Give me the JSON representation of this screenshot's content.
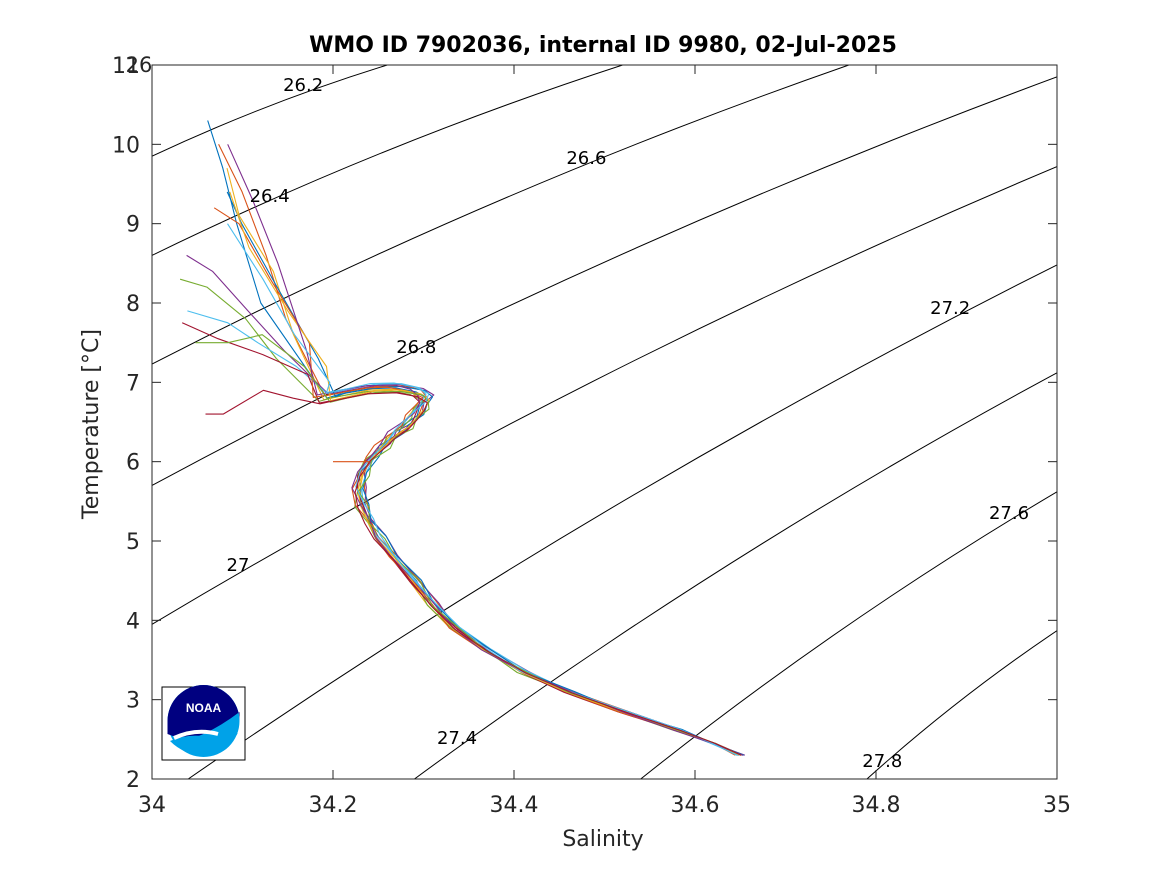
{
  "chart_data": {
    "type": "line",
    "title": "WMO ID 7902036, internal ID 9980, 02-Jul-2025",
    "xlabel": "Salinity",
    "ylabel": "Temperature [°C]",
    "xlim": [
      34,
      35
    ],
    "ylim": [
      2,
      11
    ],
    "x_ticks": [
      "34",
      "34.2",
      "34.4",
      "34.6",
      "34.8",
      "35"
    ],
    "y_ticks": [
      "2",
      "3",
      "4",
      "5",
      "6",
      "7",
      "8",
      "9",
      "10",
      "11"
    ],
    "top_overlap_label": "26",
    "grid": false,
    "legend": "none",
    "isopycnals": {
      "description_units": "sigma-theta (kg/m^3 - 1000)",
      "levels": [
        "26.2",
        "26.4",
        "26.6",
        "26.8",
        "27",
        "27.2",
        "27.4",
        "27.6",
        "27.8"
      ],
      "lines": [
        {
          "x": [
            34.0,
            34.26
          ],
          "y": [
            9.85,
            11.0
          ]
        },
        {
          "x": [
            34.0,
            34.52
          ],
          "y": [
            8.6,
            11.0
          ]
        },
        {
          "x": [
            34.0,
            34.77
          ],
          "y": [
            7.23,
            11.0
          ]
        },
        {
          "x": [
            34.0,
            35.0
          ],
          "y": [
            5.7,
            10.85
          ]
        },
        {
          "x": [
            34.0,
            35.0
          ],
          "y": [
            3.95,
            9.72
          ]
        },
        {
          "x": [
            34.04,
            35.0
          ],
          "y": [
            2.0,
            8.48
          ]
        },
        {
          "x": [
            34.29,
            35.0
          ],
          "y": [
            2.0,
            7.12
          ]
        },
        {
          "x": [
            34.54,
            35.0
          ],
          "y": [
            2.0,
            5.62
          ]
        },
        {
          "x": [
            34.79,
            35.0
          ],
          "y": [
            2.0,
            3.87
          ]
        }
      ],
      "label_positions": [
        {
          "text": "26.2",
          "x": 34.167,
          "y": 10.67
        },
        {
          "text": "26.4",
          "x": 34.13,
          "y": 9.27
        },
        {
          "text": "26.6",
          "x": 34.48,
          "y": 9.75
        },
        {
          "text": "26.8",
          "x": 34.292,
          "y": 7.37
        },
        {
          "text": "27",
          "x": 34.095,
          "y": 4.62
        },
        {
          "text": "27.2",
          "x": 34.882,
          "y": 7.86
        },
        {
          "text": "27.4",
          "x": 34.337,
          "y": 2.44
        },
        {
          "text": "27.6",
          "x": 34.947,
          "y": 5.28
        },
        {
          "text": "27.8",
          "x": 34.807,
          "y": 2.15
        }
      ]
    },
    "profile_colors": [
      "#0072BD",
      "#D95319",
      "#EDB120",
      "#7E2F8E",
      "#77AC30",
      "#4DBEEE",
      "#A2142F"
    ],
    "profile_base": {
      "x": [
        34.65,
        34.62,
        34.58,
        34.52,
        34.46,
        34.41,
        34.37,
        34.335,
        34.31,
        34.29,
        34.27,
        34.25,
        34.24,
        34.232,
        34.228,
        34.232,
        34.242,
        34.255,
        34.268,
        34.28,
        34.29,
        34.298,
        34.302,
        34.292,
        34.27,
        34.24,
        34.21,
        34.19
      ],
      "y": [
        2.3,
        2.45,
        2.62,
        2.85,
        3.1,
        3.35,
        3.62,
        3.9,
        4.2,
        4.5,
        4.8,
        5.05,
        5.25,
        5.45,
        5.65,
        5.85,
        6.05,
        6.2,
        6.35,
        6.45,
        6.58,
        6.7,
        6.8,
        6.88,
        6.93,
        6.92,
        6.85,
        6.8
      ]
    },
    "profile_tops": [
      {
        "top_x": [
          34.12,
          34.09,
          34.075,
          34.062
        ],
        "top_y": [
          8.0,
          9.0,
          9.7,
          10.3
        ]
      },
      {
        "top_x": [
          34.15,
          34.13,
          34.1,
          34.07
        ],
        "top_y": [
          7.8,
          8.6,
          9.4,
          10.0
        ]
      },
      {
        "top_x": [
          34.16,
          34.13,
          34.1,
          34.08
        ],
        "top_y": [
          7.6,
          8.4,
          9.1,
          9.7
        ]
      },
      {
        "top_x": [
          34.15,
          34.11,
          34.07,
          34.04
        ],
        "top_y": [
          7.4,
          7.9,
          8.4,
          8.6
        ]
      },
      {
        "top_x": [
          34.14,
          34.1,
          34.06,
          34.035
        ],
        "top_y": [
          7.3,
          7.8,
          8.2,
          8.3
        ]
      },
      {
        "top_x": [
          34.16,
          34.12,
          34.08,
          34.04
        ],
        "top_y": [
          7.2,
          7.5,
          7.75,
          7.9
        ]
      },
      {
        "top_x": [
          34.17,
          34.12,
          34.07,
          34.03
        ],
        "top_y": [
          7.1,
          7.35,
          7.55,
          7.75
        ]
      },
      {
        "top_x": [
          34.18,
          34.14,
          34.1,
          34.08
        ],
        "top_y": [
          7.3,
          8.2,
          9.0,
          9.4
        ]
      },
      {
        "top_x": [
          34.17,
          34.13,
          34.1,
          34.07
        ],
        "top_y": [
          7.5,
          8.3,
          9.0,
          9.2
        ]
      },
      {
        "top_x": [
          34.19,
          34.15,
          34.11,
          34.09
        ],
        "top_y": [
          7.2,
          7.9,
          8.7,
          9.4
        ]
      },
      {
        "top_x": [
          34.17,
          34.14,
          34.11,
          34.085
        ],
        "top_y": [
          7.4,
          8.5,
          9.3,
          10.0
        ]
      },
      {
        "top_x": [
          34.17,
          34.12,
          34.08,
          34.045
        ],
        "top_y": [
          7.2,
          7.6,
          7.5,
          7.5
        ]
      },
      {
        "top_x": [
          34.2,
          34.16,
          34.12,
          34.08
        ],
        "top_y": [
          7.0,
          7.6,
          8.3,
          9.0
        ]
      },
      {
        "top_x": [
          34.16,
          34.12,
          34.08,
          34.06
        ],
        "top_y": [
          6.8,
          6.9,
          6.6,
          6.6
        ]
      }
    ],
    "profile_variations": [
      {
        "dx": 0.0,
        "dy": 0.0
      },
      {
        "dx": 0.004,
        "dy": 0.03
      },
      {
        "dx": -0.003,
        "dy": -0.02
      },
      {
        "dx": 0.006,
        "dy": 0.05
      },
      {
        "dx": -0.005,
        "dy": -0.04
      },
      {
        "dx": 0.002,
        "dy": 0.06
      },
      {
        "dx": -0.002,
        "dy": -0.06
      },
      {
        "dx": 0.007,
        "dy": 0.02
      },
      {
        "dx": -0.006,
        "dy": 0.01
      },
      {
        "dx": 0.003,
        "dy": -0.03
      },
      {
        "dx": -0.004,
        "dy": 0.04
      },
      {
        "dx": 0.005,
        "dy": -0.05
      },
      {
        "dx": 0.001,
        "dy": 0.07
      },
      {
        "dx": -0.001,
        "dy": -0.07
      }
    ],
    "outlier_segments": [
      {
        "x": [
          34.2,
          34.24
        ],
        "y": [
          6.0,
          6.0
        ]
      }
    ]
  },
  "logo": {
    "text": "NOAA",
    "colors": {
      "dark": "#000080",
      "light": "#00A2E8",
      "white": "#ffffff"
    }
  }
}
